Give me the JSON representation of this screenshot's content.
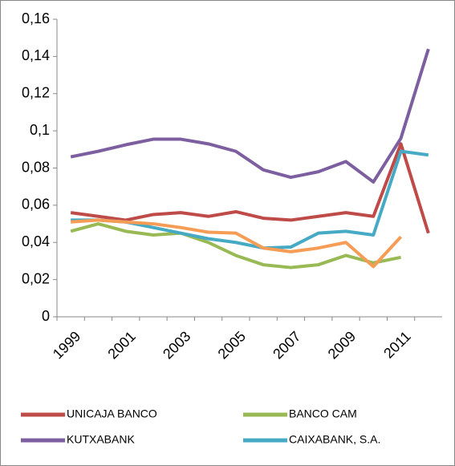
{
  "chart_data": {
    "type": "line",
    "categories": [
      "1999",
      null,
      "2001",
      null,
      "2003",
      null,
      "2005",
      null,
      "2007",
      null,
      "2009",
      null,
      "2011",
      null
    ],
    "series": [
      {
        "name": "UNICAJA BANCO",
        "color": "#be4b48",
        "values": [
          0.056,
          0.054,
          0.052,
          0.055,
          0.056,
          0.054,
          0.0565,
          0.053,
          0.052,
          0.054,
          0.056,
          0.054,
          0.093,
          0.045
        ]
      },
      {
        "name": "BANCO CAM",
        "color": "#98b954",
        "values": [
          0.046,
          0.05,
          0.046,
          0.044,
          0.045,
          0.04,
          0.033,
          0.028,
          0.0265,
          0.028,
          0.033,
          0.029,
          0.032,
          null
        ]
      },
      {
        "name": "KUTXABANK",
        "color": "#7d5fa0",
        "values": [
          0.086,
          0.089,
          0.0925,
          0.0955,
          0.0955,
          0.093,
          0.089,
          0.079,
          0.075,
          0.078,
          0.0835,
          0.0725,
          0.096,
          0.144
        ]
      },
      {
        "name": "CAIXABANK, S.A.",
        "color": "#46aac5",
        "values": [
          0.052,
          0.052,
          0.051,
          0.048,
          0.045,
          0.042,
          0.04,
          0.037,
          0.0375,
          0.045,
          0.046,
          0.044,
          0.089,
          0.087
        ]
      },
      {
        "color": "#f59d56",
        "values": [
          0.051,
          0.052,
          0.051,
          0.05,
          0.048,
          0.0455,
          0.045,
          0.037,
          0.035,
          0.037,
          0.04,
          0.027,
          0.043,
          null
        ]
      }
    ],
    "ylim": [
      0,
      0.16
    ],
    "yticks": [
      0,
      {
        "value": 0.02,
        "label": "0,02"
      },
      {
        "value": 0.04,
        "label": "0,04"
      },
      {
        "value": 0.06,
        "label": "0,06"
      },
      {
        "value": 0.08,
        "label": "0,08"
      },
      {
        "value": 0.1,
        "label": "0,1"
      },
      {
        "value": 0.12,
        "label": "0,12"
      },
      {
        "value": 0.14,
        "label": "0,14"
      },
      {
        "value": 0.16,
        "label": "0,16"
      }
    ]
  }
}
